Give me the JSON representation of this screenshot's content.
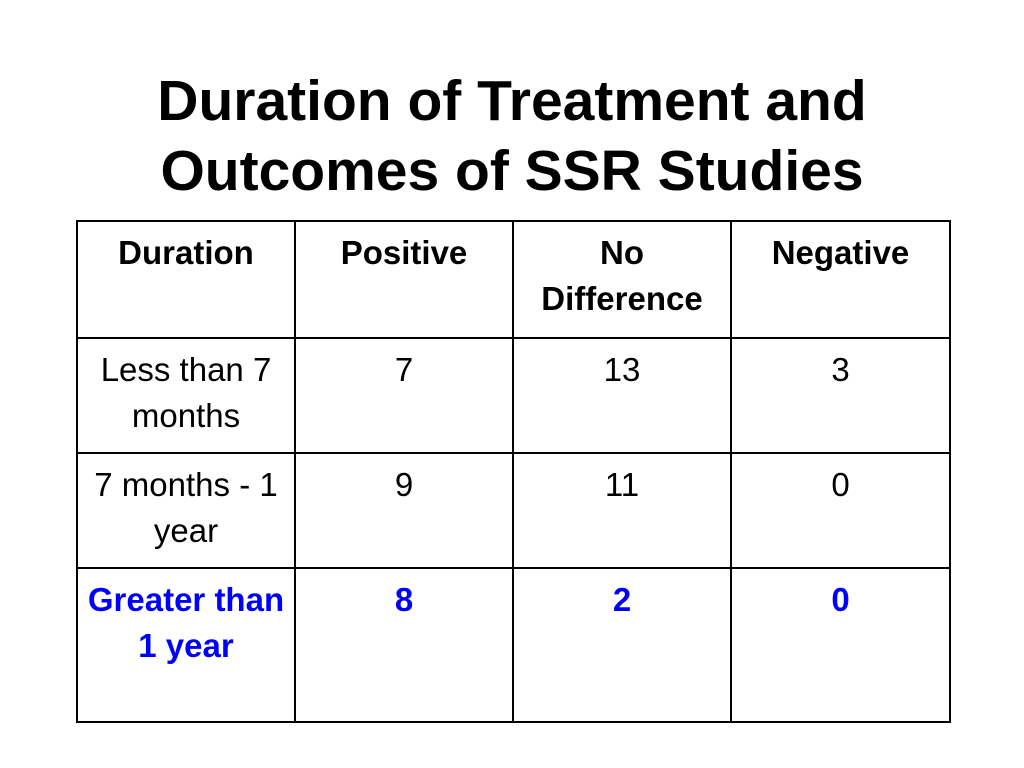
{
  "title": {
    "line1": "Duration of Treatment and",
    "line2": "Outcomes of SSR Studies"
  },
  "table": {
    "columns": [
      "Duration",
      "Positive",
      "No Difference",
      "Negative"
    ],
    "rows": [
      [
        "Less than 7 months",
        "7",
        "13",
        "3"
      ],
      [
        "7 months - 1 year",
        "9",
        "11",
        "0"
      ],
      [
        "Greater than 1 year",
        "8",
        "2",
        "0"
      ]
    ],
    "highlight_color": "#0000ff"
  }
}
